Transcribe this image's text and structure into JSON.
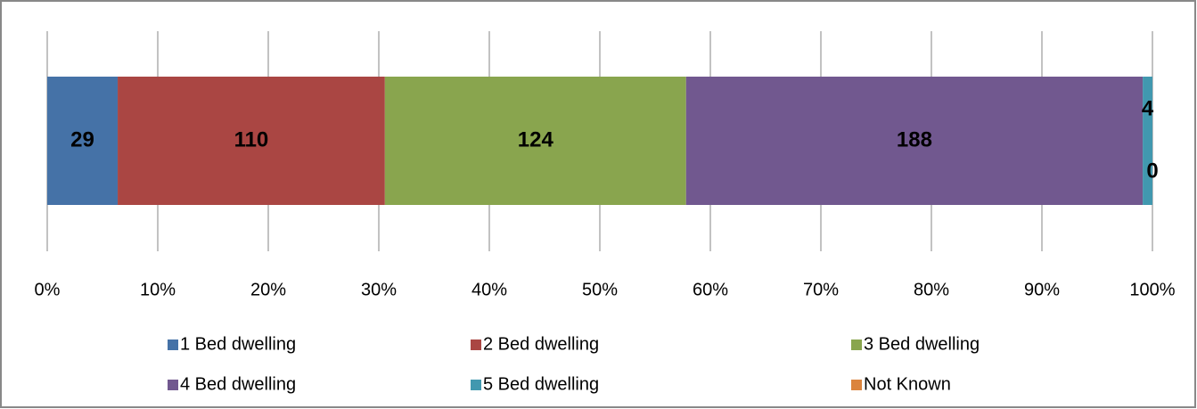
{
  "chart_data": {
    "type": "bar",
    "orientation": "horizontal",
    "stacking": "percent",
    "series": [
      {
        "name": "1 Bed dwelling",
        "color": "#4572a7",
        "values": [
          29
        ]
      },
      {
        "name": "2 Bed dwelling",
        "color": "#aa4643",
        "values": [
          110
        ]
      },
      {
        "name": "3 Bed dwelling",
        "color": "#89a54e",
        "values": [
          124
        ]
      },
      {
        "name": "4 Bed dwelling",
        "color": "#71588f",
        "values": [
          188
        ]
      },
      {
        "name": "5 Bed dwelling",
        "color": "#4198af",
        "values": [
          4
        ]
      },
      {
        "name": "Not Known",
        "color": "#db843d",
        "values": [
          0
        ]
      }
    ],
    "xlim": [
      0,
      100
    ],
    "xticks": [
      {
        "value": 0,
        "label": "0%"
      },
      {
        "value": 10,
        "label": "10%"
      },
      {
        "value": 20,
        "label": "20%"
      },
      {
        "value": 30,
        "label": "30%"
      },
      {
        "value": 40,
        "label": "40%"
      },
      {
        "value": 50,
        "label": "50%"
      },
      {
        "value": 60,
        "label": "60%"
      },
      {
        "value": 70,
        "label": "70%"
      },
      {
        "value": 80,
        "label": "80%"
      },
      {
        "value": 90,
        "label": "90%"
      },
      {
        "value": 100,
        "label": "100%"
      }
    ],
    "grid": true,
    "legend": "bottom"
  }
}
